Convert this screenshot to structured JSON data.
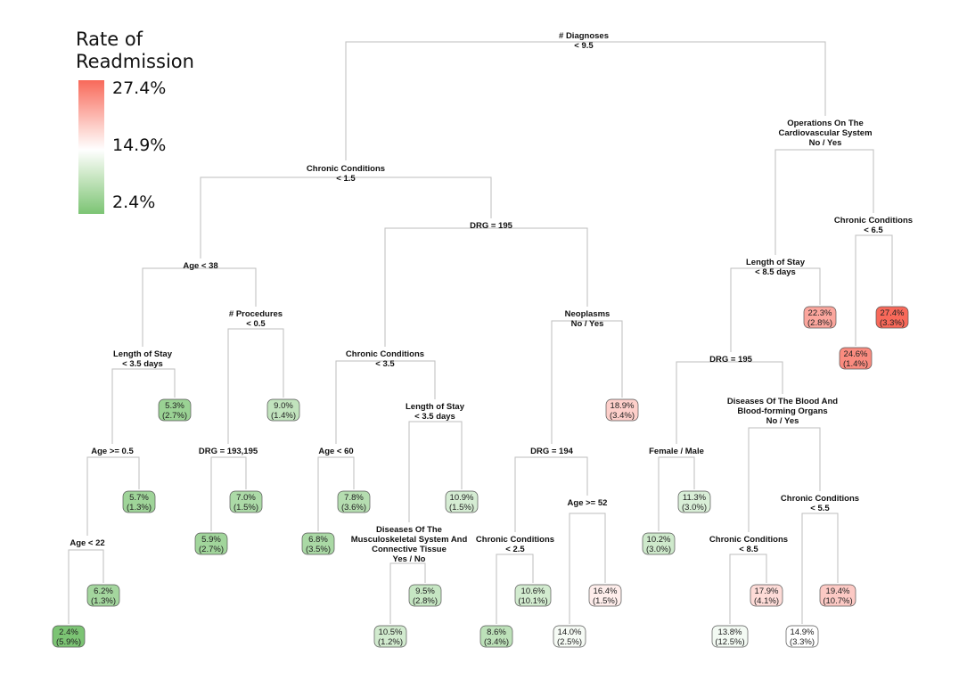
{
  "legend": {
    "title_line1": "Rate of",
    "title_line2": "Readmission",
    "max_label": "27.4%",
    "mid_label": "14.9%",
    "min_label": "2.4%",
    "max_value": 27.4,
    "mid_value": 14.9,
    "min_value": 2.4,
    "max_color": "#f8695a",
    "mid_color": "#ffffff",
    "min_color": "#7cc474"
  },
  "splits": [
    {
      "id": "s-diag",
      "lines": [
        "# Diagnoses",
        "< 9.5"
      ]
    },
    {
      "id": "s-cc15",
      "lines": [
        "Chronic Conditions",
        "< 1.5"
      ]
    },
    {
      "id": "s-ops",
      "lines": [
        "Operations On The",
        "Cardiovascular System",
        "No     /     Yes"
      ]
    },
    {
      "id": "s-age38",
      "lines": [
        "Age < 38"
      ]
    },
    {
      "id": "s-drg195a",
      "lines": [
        "DRG = 195"
      ]
    },
    {
      "id": "s-los85",
      "lines": [
        "Length of Stay",
        "< 8.5 days"
      ]
    },
    {
      "id": "s-cc65",
      "lines": [
        "Chronic Conditions",
        "< 6.5"
      ]
    },
    {
      "id": "s-los35a",
      "lines": [
        "Length of Stay",
        "< 3.5 days"
      ]
    },
    {
      "id": "s-proc",
      "lines": [
        "# Procedures",
        "< 0.5"
      ]
    },
    {
      "id": "s-cc35",
      "lines": [
        "Chronic Conditions",
        "< 3.5"
      ]
    },
    {
      "id": "s-neo",
      "lines": [
        "Neoplasms",
        "No     /     Yes"
      ]
    },
    {
      "id": "s-drg195b",
      "lines": [
        "DRG = 195"
      ]
    },
    {
      "id": "s-blood",
      "lines": [
        "Diseases Of The Blood And",
        "Blood-forming Organs",
        "No     /     Yes"
      ]
    },
    {
      "id": "s-age05",
      "lines": [
        "Age >= 0.5"
      ]
    },
    {
      "id": "s-drg193",
      "lines": [
        "DRG = 193,195"
      ]
    },
    {
      "id": "s-age60",
      "lines": [
        "Age < 60"
      ]
    },
    {
      "id": "s-los35b",
      "lines": [
        "Length of Stay",
        "< 3.5 days"
      ]
    },
    {
      "id": "s-drg194",
      "lines": [
        "DRG = 194"
      ]
    },
    {
      "id": "s-sex",
      "lines": [
        "Female    /    Male"
      ]
    },
    {
      "id": "s-cc55",
      "lines": [
        "Chronic Conditions",
        "< 5.5"
      ]
    },
    {
      "id": "s-age22",
      "lines": [
        "Age < 22"
      ]
    },
    {
      "id": "s-musc",
      "lines": [
        "Diseases Of The",
        "Musculoskeletal System And",
        "Connective Tissue",
        "Yes     /     No"
      ]
    },
    {
      "id": "s-cc25",
      "lines": [
        "Chronic Conditions",
        "< 2.5"
      ]
    },
    {
      "id": "s-age52",
      "lines": [
        "Age >= 52"
      ]
    },
    {
      "id": "s-cc85",
      "lines": [
        "Chronic Conditions",
        "< 8.5"
      ]
    }
  ],
  "leaves": [
    {
      "id": "l1",
      "rate": 2.4,
      "rate_label": "2.4%",
      "share_label": "(5.9%)"
    },
    {
      "id": "l2",
      "rate": 6.2,
      "rate_label": "6.2%",
      "share_label": "(1.3%)"
    },
    {
      "id": "l3",
      "rate": 5.7,
      "rate_label": "5.7%",
      "share_label": "(1.3%)"
    },
    {
      "id": "l4",
      "rate": 5.3,
      "rate_label": "5.3%",
      "share_label": "(2.7%)"
    },
    {
      "id": "l5",
      "rate": 5.9,
      "rate_label": "5.9%",
      "share_label": "(2.7%)"
    },
    {
      "id": "l6",
      "rate": 7.0,
      "rate_label": "7.0%",
      "share_label": "(1.5%)"
    },
    {
      "id": "l7",
      "rate": 9.0,
      "rate_label": "9.0%",
      "share_label": "(1.4%)"
    },
    {
      "id": "l8",
      "rate": 6.8,
      "rate_label": "6.8%",
      "share_label": "(3.5%)"
    },
    {
      "id": "l9",
      "rate": 7.8,
      "rate_label": "7.8%",
      "share_label": "(3.6%)"
    },
    {
      "id": "l10",
      "rate": 10.5,
      "rate_label": "10.5%",
      "share_label": "(1.2%)"
    },
    {
      "id": "l11",
      "rate": 9.5,
      "rate_label": "9.5%",
      "share_label": "(2.8%)"
    },
    {
      "id": "l12",
      "rate": 10.9,
      "rate_label": "10.9%",
      "share_label": "(1.5%)"
    },
    {
      "id": "l13",
      "rate": 8.6,
      "rate_label": "8.6%",
      "share_label": "(3.4%)"
    },
    {
      "id": "l14",
      "rate": 10.6,
      "rate_label": "10.6%",
      "share_label": "(10.1%)"
    },
    {
      "id": "l15",
      "rate": 14.0,
      "rate_label": "14.0%",
      "share_label": "(2.5%)"
    },
    {
      "id": "l16",
      "rate": 16.4,
      "rate_label": "16.4%",
      "share_label": "(1.5%)"
    },
    {
      "id": "l17",
      "rate": 18.9,
      "rate_label": "18.9%",
      "share_label": "(3.4%)"
    },
    {
      "id": "l18",
      "rate": 10.2,
      "rate_label": "10.2%",
      "share_label": "(3.0%)"
    },
    {
      "id": "l19",
      "rate": 11.3,
      "rate_label": "11.3%",
      "share_label": "(3.0%)"
    },
    {
      "id": "l20",
      "rate": 13.8,
      "rate_label": "13.8%",
      "share_label": "(12.5%)"
    },
    {
      "id": "l21",
      "rate": 17.9,
      "rate_label": "17.9%",
      "share_label": "(4.1%)"
    },
    {
      "id": "l22",
      "rate": 14.9,
      "rate_label": "14.9%",
      "share_label": "(3.3%)"
    },
    {
      "id": "l23",
      "rate": 19.4,
      "rate_label": "19.4%",
      "share_label": "(10.7%)"
    },
    {
      "id": "l24",
      "rate": 22.3,
      "rate_label": "22.3%",
      "share_label": "(2.8%)"
    },
    {
      "id": "l25",
      "rate": 24.6,
      "rate_label": "24.6%",
      "share_label": "(1.4%)"
    },
    {
      "id": "l26",
      "rate": 27.4,
      "rate_label": "27.4%",
      "share_label": "(3.3%)"
    }
  ]
}
